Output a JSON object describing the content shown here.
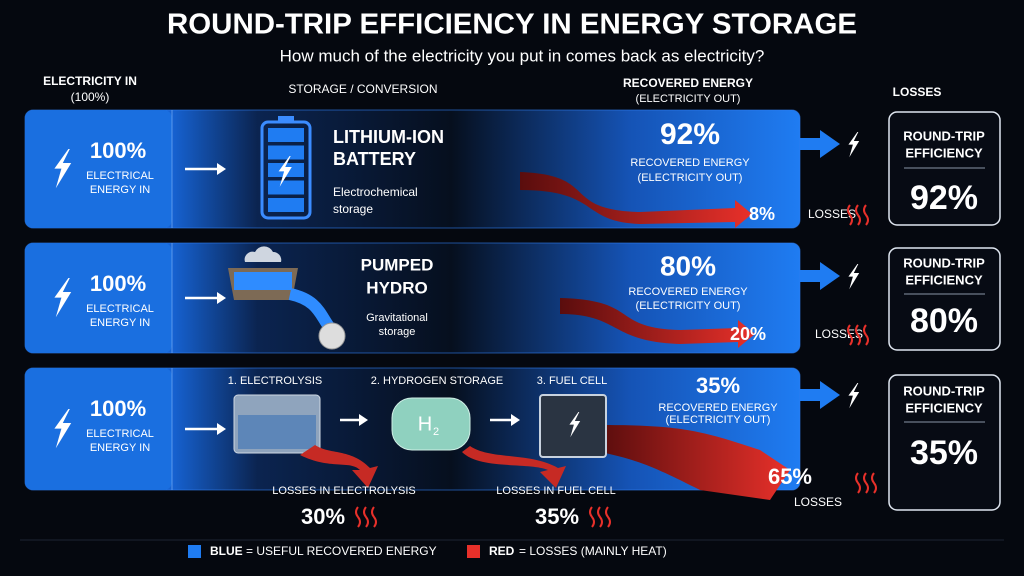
{
  "header": {
    "title": "ROUND-TRIP EFFICIENCY IN ENERGY STORAGE",
    "subtitle": "How much of the electricity you put in comes back as electricity?"
  },
  "columns": {
    "input": [
      "ELECTRICITY IN",
      "(100%)"
    ],
    "storage": "STORAGE / CONVERSION",
    "recovered": [
      "RECOVERED ENERGY",
      "(ELECTRICITY OUT)"
    ],
    "losses": "LOSSES"
  },
  "rows": [
    {
      "input": {
        "percent": "100%",
        "lines": [
          "ELECTRICAL",
          "ENERGY IN"
        ]
      },
      "name": [
        "LITHIUM-ION",
        "BATTERY"
      ],
      "description": [
        "Electrochemical",
        "storage"
      ],
      "recovered": {
        "percent": "92%",
        "lines": [
          "RECOVERED ENERGY",
          "(ELECTRICITY OUT)"
        ]
      },
      "losses": {
        "percent": "8%",
        "label": "LOSSES"
      },
      "efficiency": {
        "lines": [
          "ROUND-TRIP",
          "EFFICIENCY"
        ],
        "percent": "92%"
      }
    },
    {
      "input": {
        "percent": "100%",
        "lines": [
          "ELECTRICAL",
          "ENERGY IN"
        ]
      },
      "name": [
        "PUMPED",
        "HYDRO"
      ],
      "description": [
        "Gravitational",
        "storage"
      ],
      "recovered": {
        "percent": "80%",
        "lines": [
          "RECOVERED ENERGY",
          "(ELECTRICITY OUT)"
        ]
      },
      "losses": {
        "percent": "20%",
        "label": "LOSSES"
      },
      "efficiency": {
        "lines": [
          "ROUND-TRIP",
          "EFFICIENCY"
        ],
        "percent": "80%"
      }
    },
    {
      "input": {
        "percent": "100%",
        "lines": [
          "ELECTRICAL",
          "ENERGY IN"
        ]
      },
      "stages": [
        "1. ELECTROLYSIS",
        "2. HYDROGEN STORAGE",
        "3. FUEL CELL"
      ],
      "tank_label": [
        "H",
        "2"
      ],
      "stage_losses": [
        {
          "label": "LOSSES IN ELECTROLYSIS",
          "percent": "30%"
        },
        {
          "label": "LOSSES IN FUEL CELL",
          "percent": "35%"
        }
      ],
      "recovered": {
        "percent": "35%",
        "lines": [
          "RECOVERED ENERGY",
          "(ELECTRICITY OUT)"
        ]
      },
      "losses": {
        "percent": "65%",
        "label": "LOSSES"
      },
      "efficiency": {
        "lines": [
          "ROUND-TRIP",
          "EFFICIENCY"
        ],
        "percent": "35%"
      }
    }
  ],
  "legend": [
    {
      "key": "BLUE",
      "text": "= USEFUL RECOVERED ENERGY"
    },
    {
      "key": "RED",
      "text": "= LOSSES (MAINLY HEAT)"
    }
  ]
}
